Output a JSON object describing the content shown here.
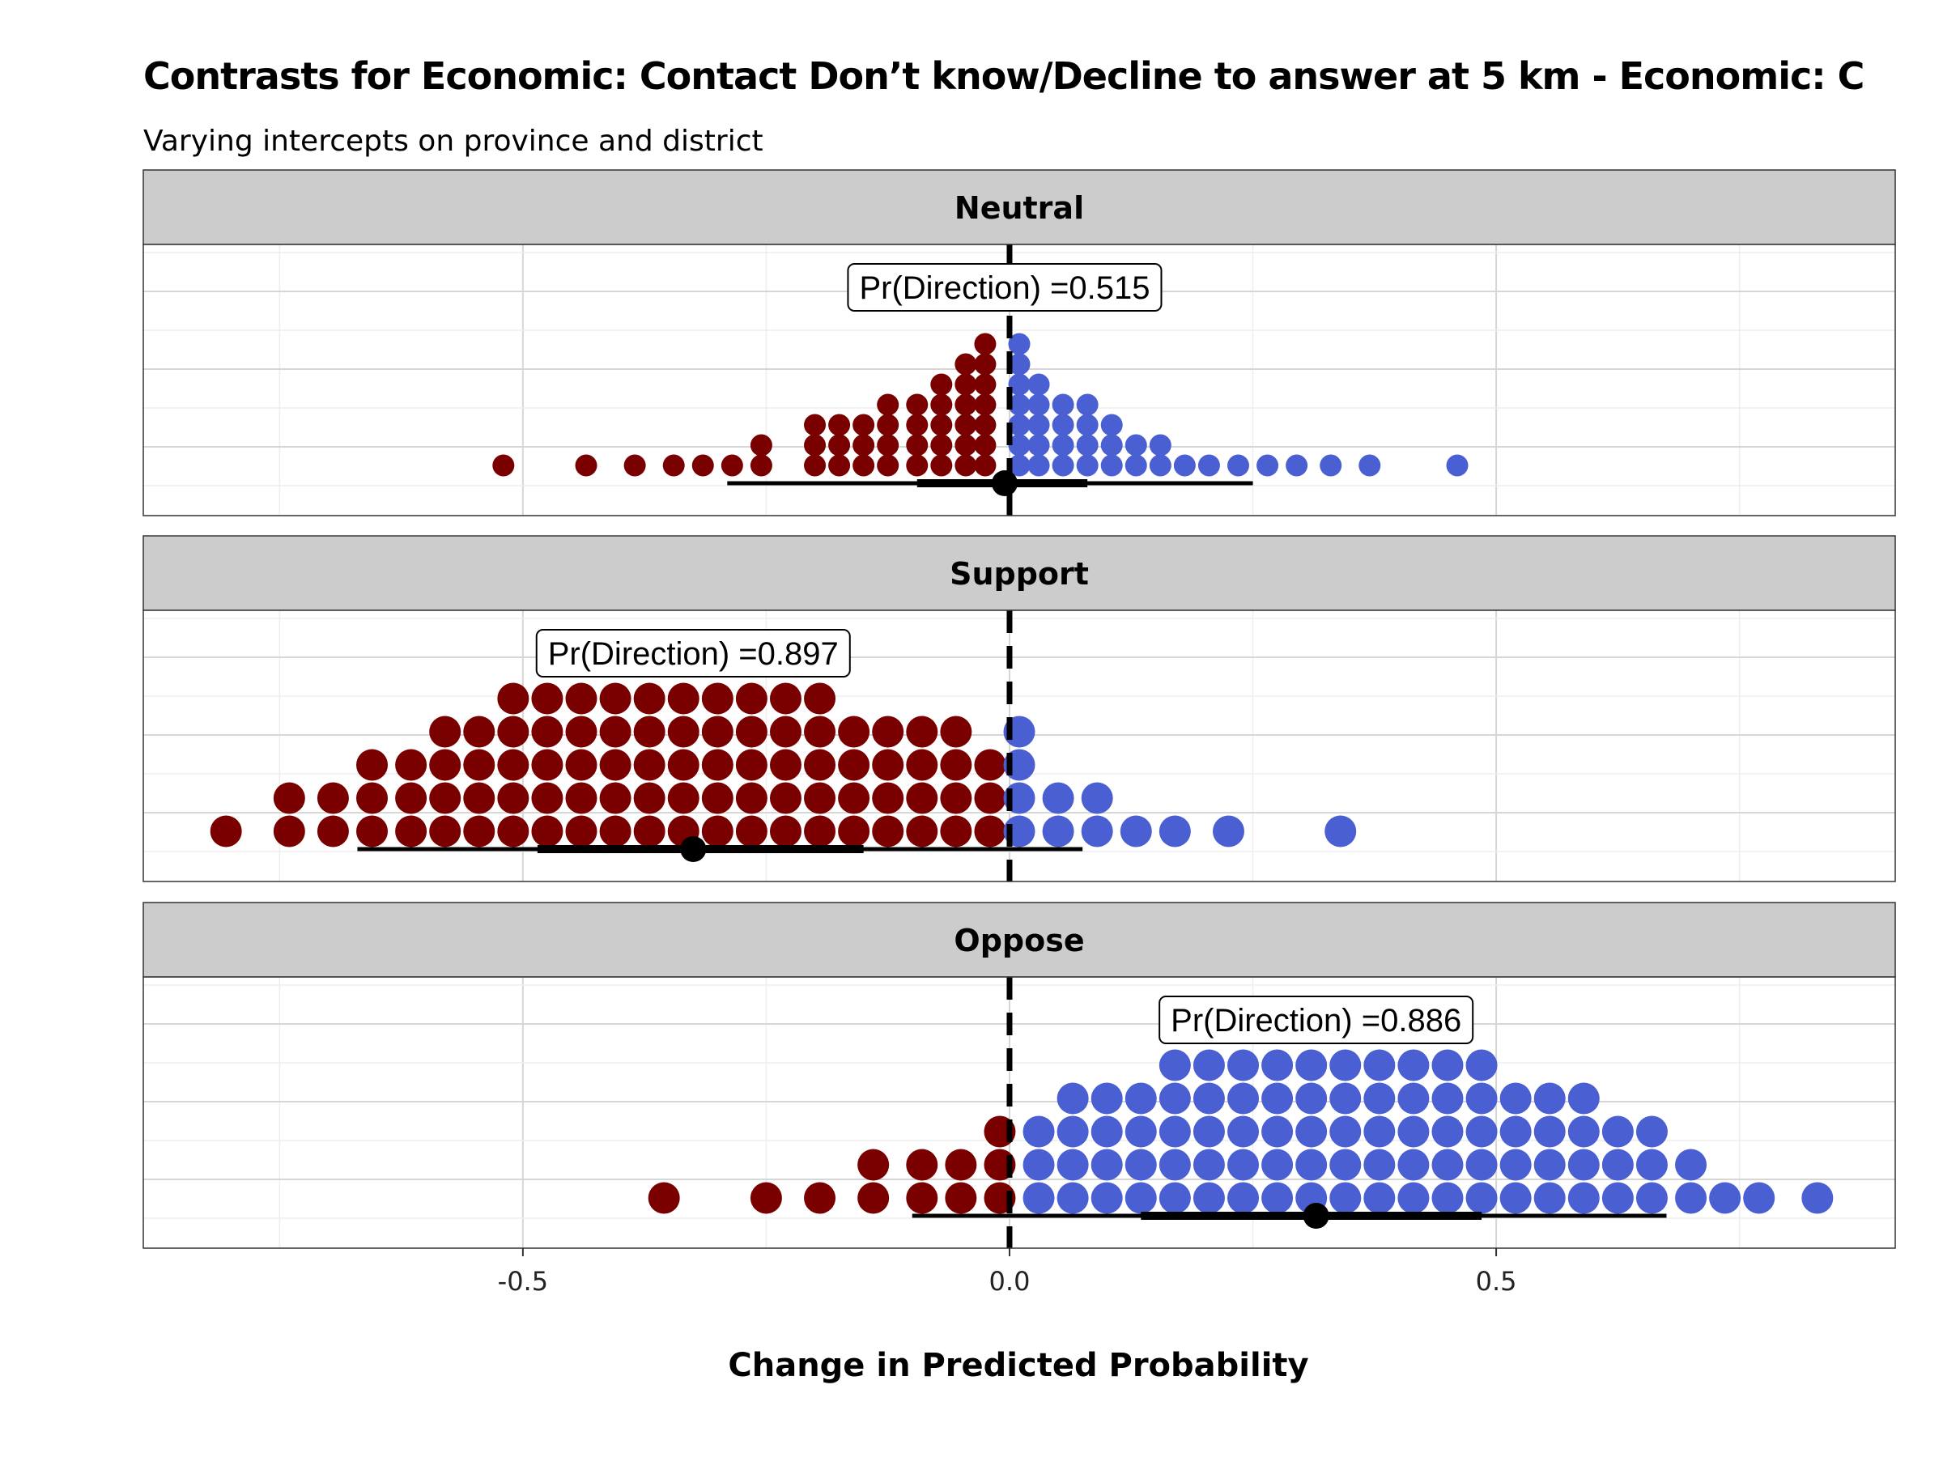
{
  "chart_data": {
    "type": "dotplot",
    "title": "Contrasts for Economic: Contact Don’t know/Decline to answer at 5 km - Economic: C",
    "subtitle": "Varying intercepts on province and district",
    "xlabel": "Change in Predicted Probability",
    "xlim": [
      -0.89,
      0.91
    ],
    "x_ticks": [
      -0.5,
      0.0,
      0.5
    ],
    "x_tick_labels": [
      "-0.5",
      "0.0",
      "0.5"
    ],
    "reference_line_x": 0,
    "colors": {
      "negative": "#7a0000",
      "positive": "#4a5fd1",
      "point": "#000000",
      "strip_fill": "#cccccc"
    },
    "panels": [
      {
        "label": "Neutral",
        "pr_direction_label": "Pr(Direction) =0.515",
        "pr_direction_x": -0.005,
        "median": -0.005,
        "interval_66": [
          -0.095,
          0.08
        ],
        "interval_95": [
          -0.29,
          0.25
        ],
        "dots": [
          {
            "x": -0.52,
            "count": 1
          },
          {
            "x": -0.435,
            "count": 1
          },
          {
            "x": -0.385,
            "count": 1
          },
          {
            "x": -0.345,
            "count": 1
          },
          {
            "x": -0.315,
            "count": 1
          },
          {
            "x": -0.285,
            "count": 1
          },
          {
            "x": -0.255,
            "count": 2
          },
          {
            "x": -0.2,
            "count": 3
          },
          {
            "x": -0.175,
            "count": 3
          },
          {
            "x": -0.15,
            "count": 3
          },
          {
            "x": -0.125,
            "count": 4
          },
          {
            "x": -0.095,
            "count": 4
          },
          {
            "x": -0.07,
            "count": 5
          },
          {
            "x": -0.045,
            "count": 6
          },
          {
            "x": -0.025,
            "count": 7
          },
          {
            "x": 0.01,
            "count": 7
          },
          {
            "x": 0.03,
            "count": 5
          },
          {
            "x": 0.055,
            "count": 4
          },
          {
            "x": 0.08,
            "count": 4
          },
          {
            "x": 0.105,
            "count": 3
          },
          {
            "x": 0.13,
            "count": 2
          },
          {
            "x": 0.155,
            "count": 2
          },
          {
            "x": 0.18,
            "count": 1
          },
          {
            "x": 0.205,
            "count": 1
          },
          {
            "x": 0.235,
            "count": 1
          },
          {
            "x": 0.265,
            "count": 1
          },
          {
            "x": 0.295,
            "count": 1
          },
          {
            "x": 0.33,
            "count": 1
          },
          {
            "x": 0.37,
            "count": 1
          },
          {
            "x": 0.46,
            "count": 1
          }
        ]
      },
      {
        "label": "Support",
        "pr_direction_label": "Pr(Direction) =0.897",
        "pr_direction_x": -0.325,
        "median": -0.325,
        "interval_66": [
          -0.485,
          -0.15
        ],
        "interval_95": [
          -0.67,
          0.075
        ],
        "dots": [
          {
            "x": -0.805,
            "count": 1
          },
          {
            "x": -0.74,
            "count": 2
          },
          {
            "x": -0.695,
            "count": 2
          },
          {
            "x": -0.655,
            "count": 3
          },
          {
            "x": -0.615,
            "count": 3
          },
          {
            "x": -0.58,
            "count": 4
          },
          {
            "x": -0.545,
            "count": 4
          },
          {
            "x": -0.51,
            "count": 5
          },
          {
            "x": -0.475,
            "count": 5
          },
          {
            "x": -0.44,
            "count": 5
          },
          {
            "x": -0.405,
            "count": 5
          },
          {
            "x": -0.37,
            "count": 5
          },
          {
            "x": -0.335,
            "count": 5
          },
          {
            "x": -0.3,
            "count": 5
          },
          {
            "x": -0.265,
            "count": 5
          },
          {
            "x": -0.23,
            "count": 5
          },
          {
            "x": -0.195,
            "count": 5
          },
          {
            "x": -0.16,
            "count": 4
          },
          {
            "x": -0.125,
            "count": 4
          },
          {
            "x": -0.09,
            "count": 4
          },
          {
            "x": -0.055,
            "count": 4
          },
          {
            "x": -0.02,
            "count": 3
          },
          {
            "x": 0.01,
            "count": 4
          },
          {
            "x": 0.05,
            "count": 2
          },
          {
            "x": 0.09,
            "count": 2
          },
          {
            "x": 0.13,
            "count": 1
          },
          {
            "x": 0.17,
            "count": 1
          },
          {
            "x": 0.225,
            "count": 1
          },
          {
            "x": 0.34,
            "count": 1
          }
        ]
      },
      {
        "label": "Oppose",
        "pr_direction_label": "Pr(Direction) =0.886",
        "pr_direction_x": 0.315,
        "median": 0.315,
        "interval_66": [
          0.135,
          0.485
        ],
        "interval_95": [
          -0.1,
          0.675
        ],
        "dots": [
          {
            "x": -0.355,
            "count": 1
          },
          {
            "x": -0.25,
            "count": 1
          },
          {
            "x": -0.195,
            "count": 1
          },
          {
            "x": -0.14,
            "count": 2
          },
          {
            "x": -0.09,
            "count": 2
          },
          {
            "x": -0.05,
            "count": 2
          },
          {
            "x": -0.01,
            "count": 3
          },
          {
            "x": 0.03,
            "count": 3
          },
          {
            "x": 0.065,
            "count": 4
          },
          {
            "x": 0.1,
            "count": 4
          },
          {
            "x": 0.135,
            "count": 4
          },
          {
            "x": 0.17,
            "count": 5
          },
          {
            "x": 0.205,
            "count": 5
          },
          {
            "x": 0.24,
            "count": 5
          },
          {
            "x": 0.275,
            "count": 5
          },
          {
            "x": 0.31,
            "count": 5
          },
          {
            "x": 0.345,
            "count": 5
          },
          {
            "x": 0.38,
            "count": 5
          },
          {
            "x": 0.415,
            "count": 5
          },
          {
            "x": 0.45,
            "count": 5
          },
          {
            "x": 0.485,
            "count": 5
          },
          {
            "x": 0.52,
            "count": 4
          },
          {
            "x": 0.555,
            "count": 4
          },
          {
            "x": 0.59,
            "count": 4
          },
          {
            "x": 0.625,
            "count": 3
          },
          {
            "x": 0.66,
            "count": 3
          },
          {
            "x": 0.7,
            "count": 2
          },
          {
            "x": 0.735,
            "count": 1
          },
          {
            "x": 0.77,
            "count": 1
          },
          {
            "x": 0.83,
            "count": 1
          }
        ]
      }
    ]
  }
}
